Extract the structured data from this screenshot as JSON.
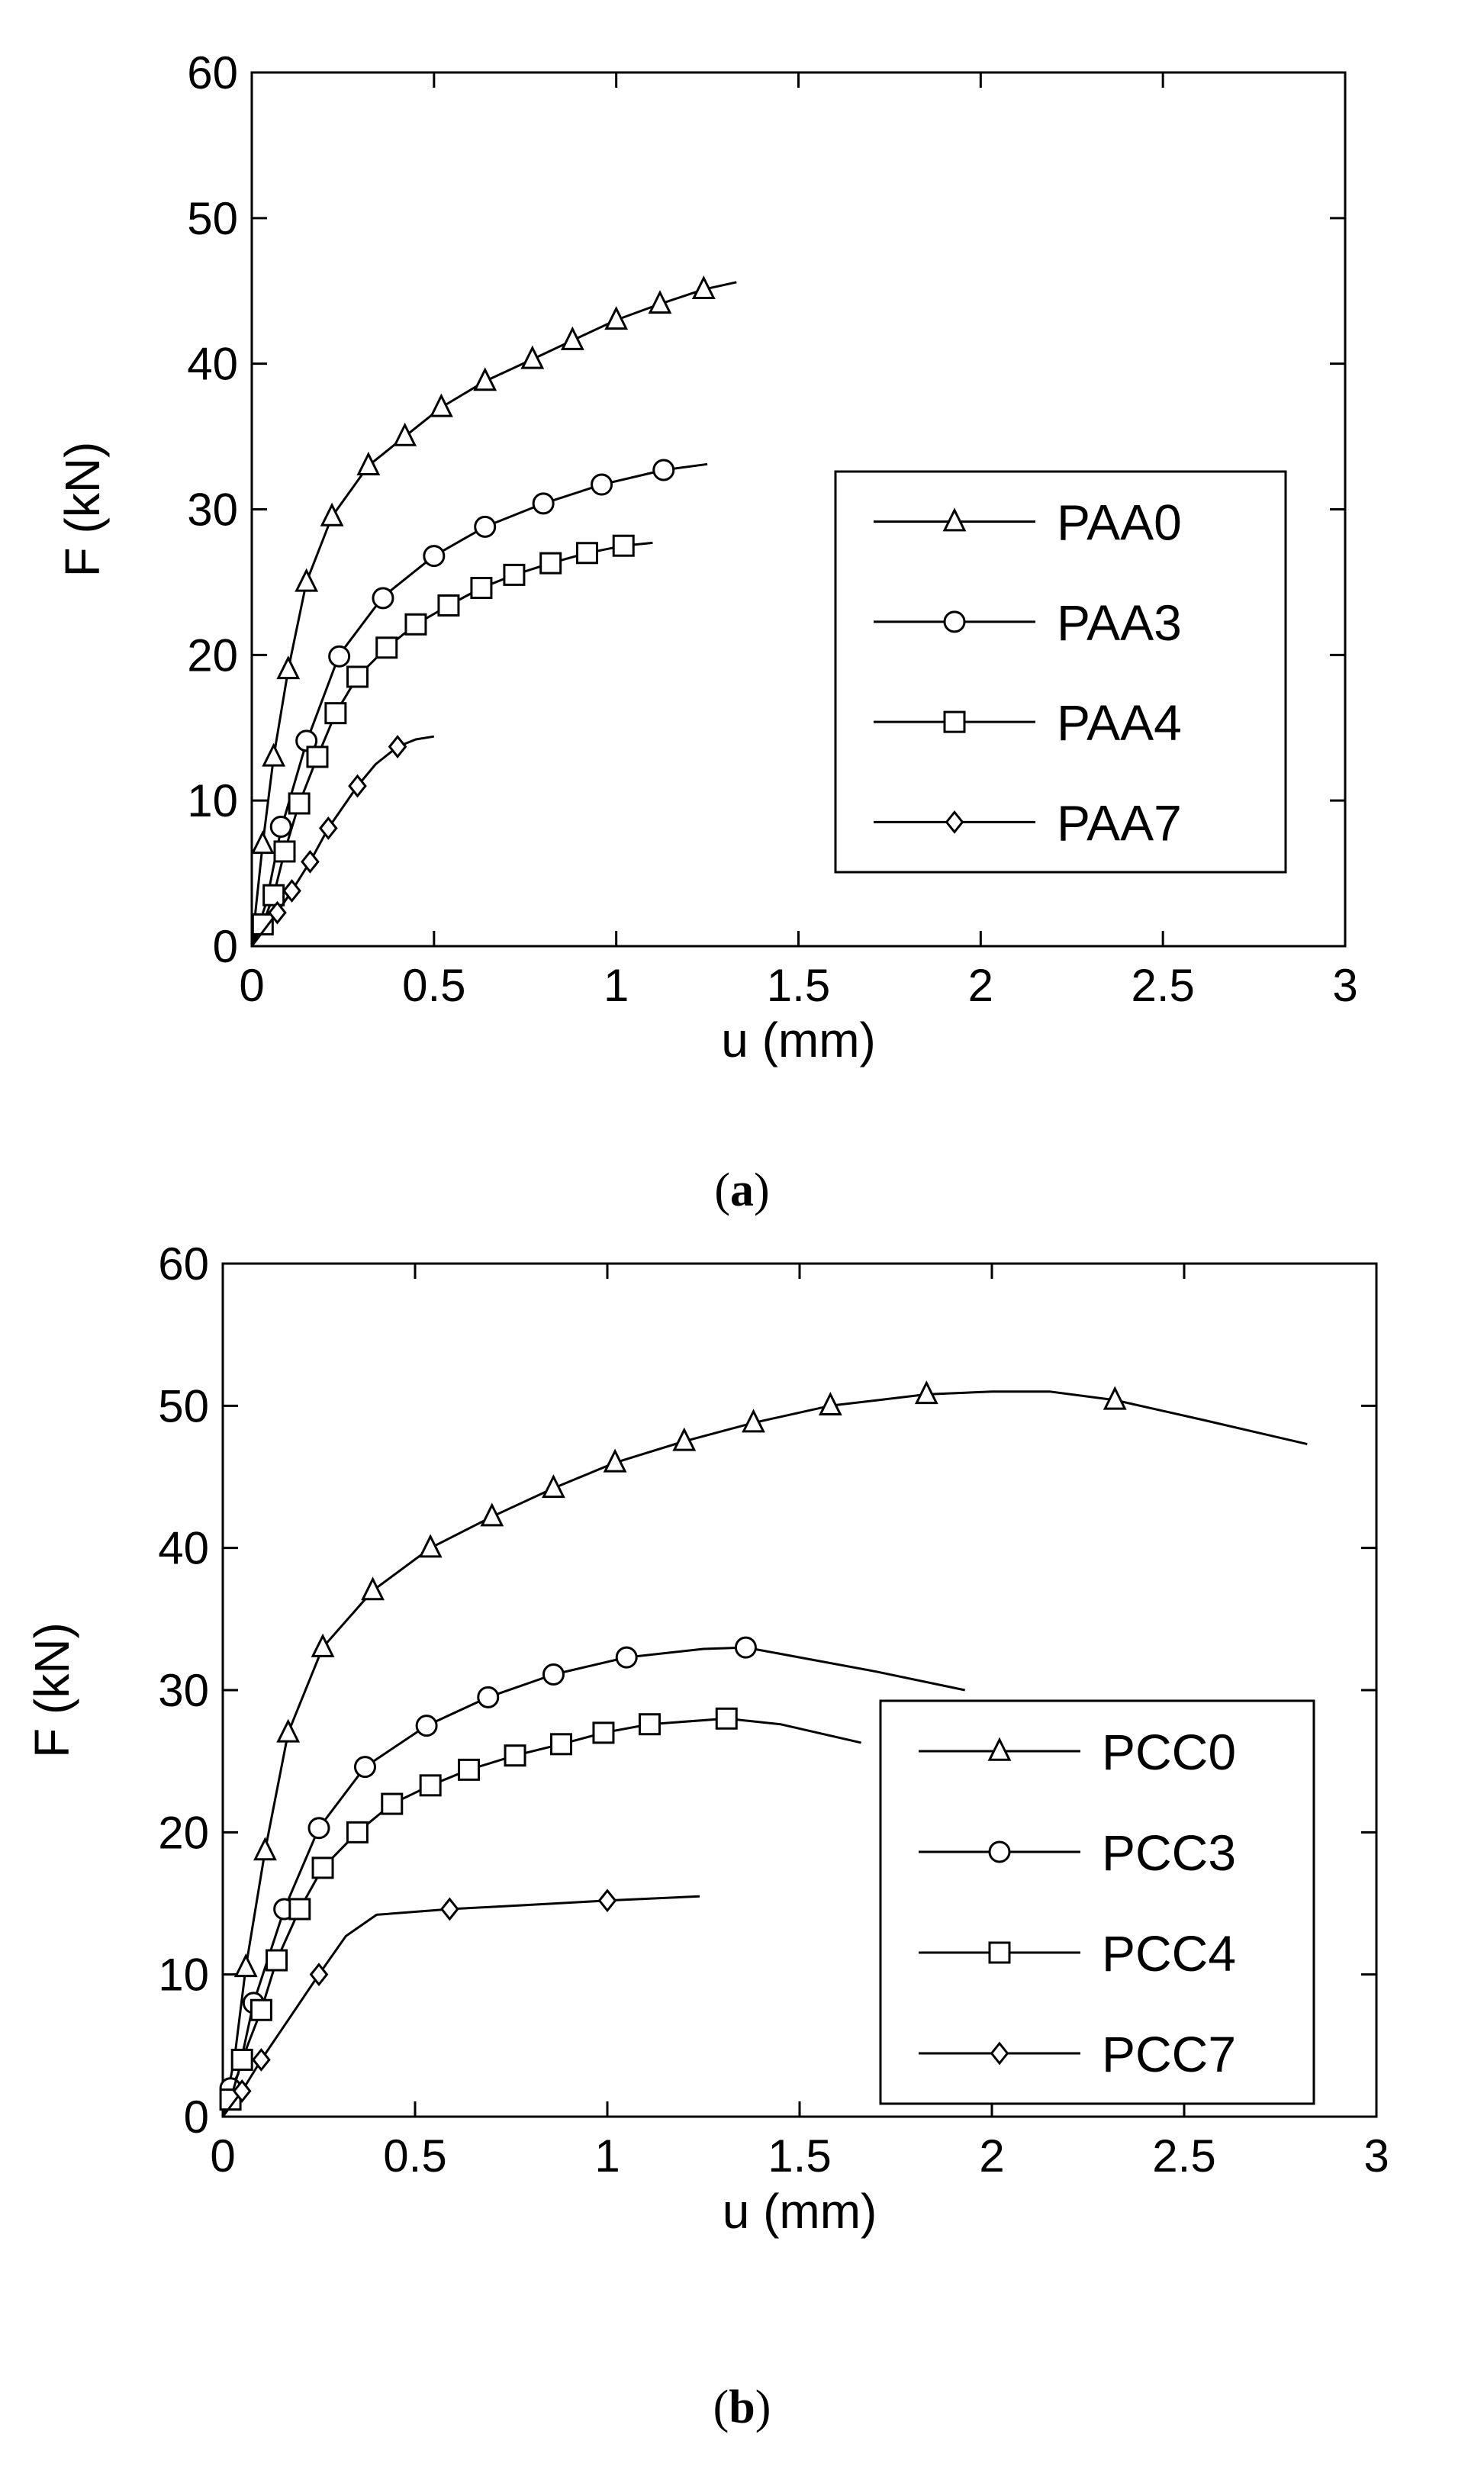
{
  "chart_data": [
    {
      "type": "line",
      "panel": "a",
      "caption_open": "(",
      "caption_letter": "a",
      "caption_close": ")",
      "xlabel": "u (mm)",
      "ylabel": "F (kN)",
      "xlim": [
        0,
        3
      ],
      "ylim": [
        0,
        60
      ],
      "xticks": [
        0,
        0.5,
        1,
        1.5,
        2,
        2.5,
        3
      ],
      "xtick_labels": [
        "0",
        "0.5",
        "1",
        "1.5",
        "2",
        "2.5",
        "3"
      ],
      "yticks": [
        0,
        10,
        20,
        30,
        40,
        50,
        60
      ],
      "ytick_labels": [
        "0",
        "10",
        "20",
        "30",
        "40",
        "50",
        "60"
      ],
      "grid": false,
      "legend_position": "right-middle",
      "series": [
        {
          "name": "PAA0",
          "marker": "triangle",
          "line": [
            [
              0,
              0
            ],
            [
              0.03,
              7
            ],
            [
              0.06,
              13
            ],
            [
              0.1,
              19
            ],
            [
              0.15,
              25
            ],
            [
              0.22,
              29.5
            ],
            [
              0.32,
              33
            ],
            [
              0.42,
              35
            ],
            [
              0.52,
              37
            ],
            [
              0.64,
              38.8
            ],
            [
              0.77,
              40.3
            ],
            [
              0.88,
              41.6
            ],
            [
              1.0,
              43
            ],
            [
              1.12,
              44.1
            ],
            [
              1.24,
              45.1
            ],
            [
              1.33,
              45.6
            ]
          ],
          "markers": [
            [
              0.03,
              7
            ],
            [
              0.06,
              13
            ],
            [
              0.1,
              19
            ],
            [
              0.15,
              25
            ],
            [
              0.22,
              29.5
            ],
            [
              0.32,
              33
            ],
            [
              0.42,
              35
            ],
            [
              0.52,
              37
            ],
            [
              0.64,
              38.8
            ],
            [
              0.77,
              40.3
            ],
            [
              0.88,
              41.6
            ],
            [
              1.0,
              43
            ],
            [
              1.12,
              44.1
            ],
            [
              1.24,
              45.1
            ]
          ]
        },
        {
          "name": "PAA3",
          "marker": "circle",
          "line": [
            [
              0,
              0
            ],
            [
              0.04,
              3
            ],
            [
              0.08,
              8
            ],
            [
              0.15,
              14
            ],
            [
              0.24,
              20
            ],
            [
              0.36,
              24
            ],
            [
              0.5,
              26.8
            ],
            [
              0.64,
              28.8
            ],
            [
              0.8,
              30.4
            ],
            [
              0.96,
              31.7
            ],
            [
              1.13,
              32.7
            ],
            [
              1.25,
              33.1
            ]
          ],
          "markers": [
            [
              0.08,
              8.2
            ],
            [
              0.15,
              14.1
            ],
            [
              0.24,
              19.9
            ],
            [
              0.36,
              23.9
            ],
            [
              0.5,
              26.8
            ],
            [
              0.64,
              28.8
            ],
            [
              0.8,
              30.4
            ],
            [
              0.96,
              31.7
            ],
            [
              1.13,
              32.7
            ]
          ]
        },
        {
          "name": "PAA4",
          "marker": "square",
          "line": [
            [
              0,
              0
            ],
            [
              0.03,
              1.5
            ],
            [
              0.06,
              3.5
            ],
            [
              0.09,
              6.5
            ],
            [
              0.13,
              9.8
            ],
            [
              0.18,
              13
            ],
            [
              0.23,
              16
            ],
            [
              0.29,
              18.5
            ],
            [
              0.37,
              20.5
            ],
            [
              0.45,
              22.1
            ],
            [
              0.54,
              23.4
            ],
            [
              0.63,
              24.6
            ],
            [
              0.72,
              25.5
            ],
            [
              0.82,
              26.3
            ],
            [
              0.92,
              27
            ],
            [
              1.02,
              27.5
            ],
            [
              1.1,
              27.7
            ]
          ],
          "markers": [
            [
              0.03,
              1.5
            ],
            [
              0.06,
              3.5
            ],
            [
              0.09,
              6.5
            ],
            [
              0.13,
              9.8
            ],
            [
              0.18,
              13
            ],
            [
              0.23,
              16
            ],
            [
              0.29,
              18.5
            ],
            [
              0.37,
              20.5
            ],
            [
              0.45,
              22.1
            ],
            [
              0.54,
              23.4
            ],
            [
              0.63,
              24.6
            ],
            [
              0.72,
              25.5
            ],
            [
              0.82,
              26.3
            ],
            [
              0.92,
              27
            ],
            [
              1.02,
              27.5
            ]
          ]
        },
        {
          "name": "PAA7",
          "marker": "diamond",
          "line": [
            [
              0,
              0
            ],
            [
              0.07,
              2.3
            ],
            [
              0.11,
              3.8
            ],
            [
              0.16,
              5.8
            ],
            [
              0.21,
              8.1
            ],
            [
              0.29,
              11
            ],
            [
              0.34,
              12.5
            ],
            [
              0.4,
              13.7
            ],
            [
              0.45,
              14.2
            ],
            [
              0.5,
              14.4
            ]
          ],
          "markers": [
            [
              0.07,
              2.3
            ],
            [
              0.11,
              3.8
            ],
            [
              0.16,
              5.8
            ],
            [
              0.21,
              8.1
            ],
            [
              0.29,
              11
            ],
            [
              0.4,
              13.7
            ]
          ]
        }
      ]
    },
    {
      "type": "line",
      "panel": "b",
      "caption_open": "(",
      "caption_letter": "b",
      "caption_close": ")",
      "xlabel": "u (mm)",
      "ylabel": "F (kN)",
      "xlim": [
        0,
        3
      ],
      "ylim": [
        0,
        60
      ],
      "xticks": [
        0,
        0.5,
        1,
        1.5,
        2,
        2.5,
        3
      ],
      "xtick_labels": [
        "0",
        "0.5",
        "1",
        "1.5",
        "2",
        "2.5",
        "3"
      ],
      "yticks": [
        0,
        10,
        20,
        30,
        40,
        50,
        60
      ],
      "ytick_labels": [
        "0",
        "10",
        "20",
        "30",
        "40",
        "50",
        "60"
      ],
      "grid": false,
      "legend_position": "bottom-right",
      "series": [
        {
          "name": "PCC0",
          "marker": "triangle",
          "line": [
            [
              0,
              0
            ],
            [
              0.03,
              4
            ],
            [
              0.06,
              10.5
            ],
            [
              0.11,
              18.7
            ],
            [
              0.17,
              27
            ],
            [
              0.26,
              33
            ],
            [
              0.39,
              37
            ],
            [
              0.54,
              40
            ],
            [
              0.7,
              42.2
            ],
            [
              0.86,
              44.2
            ],
            [
              1.02,
              46
            ],
            [
              1.2,
              47.5
            ],
            [
              1.38,
              48.8
            ],
            [
              1.58,
              50
            ],
            [
              1.83,
              50.8
            ],
            [
              2.0,
              51
            ],
            [
              2.15,
              51
            ],
            [
              2.32,
              50.4
            ],
            [
              2.55,
              49
            ],
            [
              2.82,
              47.3
            ]
          ],
          "markers": [
            [
              0.06,
              10.5
            ],
            [
              0.11,
              18.7
            ],
            [
              0.17,
              27
            ],
            [
              0.26,
              33
            ],
            [
              0.39,
              37
            ],
            [
              0.54,
              40
            ],
            [
              0.7,
              42.2
            ],
            [
              0.86,
              44.2
            ],
            [
              1.02,
              46
            ],
            [
              1.2,
              47.5
            ],
            [
              1.38,
              48.8
            ],
            [
              1.58,
              50
            ],
            [
              1.83,
              50.8
            ],
            [
              2.32,
              50.4
            ]
          ]
        },
        {
          "name": "PCC3",
          "marker": "circle",
          "line": [
            [
              0,
              0
            ],
            [
              0.02,
              2
            ],
            [
              0.04,
              3
            ],
            [
              0.08,
              8
            ],
            [
              0.16,
              14.6
            ],
            [
              0.25,
              20.3
            ],
            [
              0.37,
              24.6
            ],
            [
              0.53,
              27.5
            ],
            [
              0.69,
              29.5
            ],
            [
              0.86,
              31.1
            ],
            [
              1.05,
              32.3
            ],
            [
              1.25,
              32.9
            ],
            [
              1.36,
              33
            ],
            [
              1.5,
              32.3
            ],
            [
              1.7,
              31.3
            ],
            [
              1.93,
              30
            ]
          ],
          "markers": [
            [
              0.02,
              2
            ],
            [
              0.08,
              8
            ],
            [
              0.16,
              14.6
            ],
            [
              0.25,
              20.3
            ],
            [
              0.37,
              24.6
            ],
            [
              0.53,
              27.5
            ],
            [
              0.69,
              29.5
            ],
            [
              0.86,
              31.1
            ],
            [
              1.05,
              32.3
            ],
            [
              1.36,
              33
            ]
          ]
        },
        {
          "name": "PCC4",
          "marker": "square",
          "line": [
            [
              0,
              0
            ],
            [
              0.02,
              1.2
            ],
            [
              0.05,
              4
            ],
            [
              0.1,
              7.5
            ],
            [
              0.14,
              11
            ],
            [
              0.2,
              14.6
            ],
            [
              0.26,
              17.5
            ],
            [
              0.35,
              20
            ],
            [
              0.44,
              22
            ],
            [
              0.54,
              23.3
            ],
            [
              0.64,
              24.4
            ],
            [
              0.76,
              25.4
            ],
            [
              0.88,
              26.2
            ],
            [
              0.99,
              27
            ],
            [
              1.11,
              27.6
            ],
            [
              1.31,
              28
            ],
            [
              1.45,
              27.6
            ],
            [
              1.66,
              26.3
            ]
          ],
          "markers": [
            [
              0.02,
              1.2
            ],
            [
              0.05,
              4
            ],
            [
              0.1,
              7.5
            ],
            [
              0.14,
              11
            ],
            [
              0.2,
              14.6
            ],
            [
              0.26,
              17.5
            ],
            [
              0.35,
              20
            ],
            [
              0.44,
              22
            ],
            [
              0.54,
              23.3
            ],
            [
              0.64,
              24.4
            ],
            [
              0.76,
              25.4
            ],
            [
              0.88,
              26.2
            ],
            [
              0.99,
              27
            ],
            [
              1.11,
              27.6
            ],
            [
              1.31,
              28
            ]
          ]
        },
        {
          "name": "PCC7",
          "marker": "diamond",
          "line": [
            [
              0,
              0
            ],
            [
              0.05,
              1.8
            ],
            [
              0.1,
              4
            ],
            [
              0.17,
              6.8
            ],
            [
              0.25,
              10
            ],
            [
              0.32,
              12.7
            ],
            [
              0.4,
              14.2
            ],
            [
              0.59,
              14.6
            ],
            [
              0.8,
              14.9
            ],
            [
              1.0,
              15.2
            ],
            [
              1.24,
              15.5
            ]
          ],
          "markers": [
            [
              0.05,
              1.8
            ],
            [
              0.1,
              4
            ],
            [
              0.25,
              10
            ],
            [
              0.59,
              14.6
            ],
            [
              1.0,
              15.2
            ]
          ]
        }
      ]
    }
  ]
}
